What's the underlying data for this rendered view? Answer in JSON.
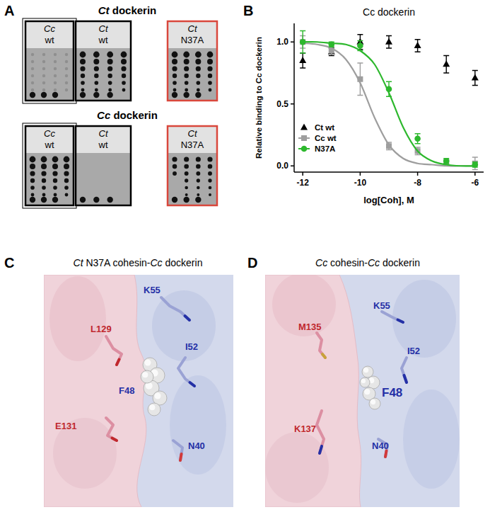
{
  "panels": {
    "A": {
      "label": "A",
      "groups": [
        {
          "title": [
            {
              "text": "Ct",
              "italic": true
            },
            {
              "text": " dockerin",
              "italic": false
            }
          ],
          "blots": [
            {
              "label": [
                "Cc",
                "wt"
              ],
              "color": "#000000"
            },
            {
              "label": [
                "Ct",
                "wt"
              ],
              "color": "#000000"
            },
            {
              "label": [
                "Ct",
                "N37A"
              ],
              "color": "#d9473c"
            }
          ]
        },
        {
          "title": [
            {
              "text": "Cc",
              "italic": true
            },
            {
              "text": " dockerin",
              "italic": false
            }
          ],
          "blots": [
            {
              "label": [
                "Cc",
                "wt"
              ],
              "color": "#000000"
            },
            {
              "label": [
                "Ct",
                "wt"
              ],
              "color": "#000000"
            },
            {
              "label": [
                "Ct",
                "N37A"
              ],
              "color": "#d9473c"
            }
          ]
        }
      ]
    },
    "B": {
      "label": "B"
    },
    "C": {
      "label": "C",
      "title": [
        {
          "text": "Ct",
          "italic": true
        },
        {
          "text": " N37A cohesin-",
          "italic": false
        },
        {
          "text": "Cc",
          "italic": true
        },
        {
          "text": " dockerin",
          "italic": false
        }
      ],
      "residues": [
        {
          "text": "K55",
          "color": "#2430a6"
        },
        {
          "text": "L129",
          "color": "#c0282d"
        },
        {
          "text": "I52",
          "color": "#2430a6"
        },
        {
          "text": "F48",
          "color": "#2430a6"
        },
        {
          "text": "E131",
          "color": "#c0282d"
        },
        {
          "text": "N40",
          "color": "#2430a6"
        }
      ]
    },
    "D": {
      "label": "D",
      "title": [
        {
          "text": "Cc",
          "italic": true
        },
        {
          "text": " cohesin-",
          "italic": false
        },
        {
          "text": "Cc",
          "italic": true
        },
        {
          "text": " dockerin",
          "italic": false
        }
      ],
      "residues": [
        {
          "text": "K55",
          "color": "#2430a6"
        },
        {
          "text": "M135",
          "color": "#c0282d"
        },
        {
          "text": "I52",
          "color": "#2430a6"
        },
        {
          "text": "F48",
          "color": "#2430a6"
        },
        {
          "text": "N40",
          "color": "#2430a6"
        },
        {
          "text": "K137",
          "color": "#c0282d"
        }
      ]
    }
  },
  "chart_data": {
    "type": "line",
    "title": "Cc dockerin",
    "x_label": "log[Coh], M",
    "y_label": "Relative binding to Cc dockerin",
    "x": [
      -12,
      -11,
      -10,
      -9,
      -8,
      -7,
      -6
    ],
    "fit_x": [
      -12,
      -11.5,
      -11,
      -10.5,
      -10,
      -9.5,
      -9,
      -8.5,
      -8,
      -7.5,
      -7,
      -6.5,
      -6
    ],
    "series": [
      {
        "name": "Ct wt",
        "color": "#000000",
        "marker": "triangle",
        "line_style": "none",
        "values": [
          0.85,
          0.92,
          1.0,
          1.0,
          0.97,
          0.82,
          0.71
        ],
        "errors": [
          0.06,
          0.03,
          0.06,
          0.05,
          0.05,
          0.07,
          0.06
        ]
      },
      {
        "name": "Cc wt",
        "color": "#9e9e9e",
        "marker": "square",
        "line_style": "solid",
        "values": [
          1.0,
          0.93,
          0.7,
          0.16,
          0.12,
          0.03,
          0.02
        ],
        "errors": [
          0.05,
          0.03,
          0.13,
          0.03,
          0.03,
          0.02,
          0.05
        ],
        "fit": [
          0.99,
          0.98,
          0.95,
          0.86,
          0.67,
          0.39,
          0.17,
          0.06,
          0.02,
          0.01,
          0.0,
          0.0,
          0.0
        ]
      },
      {
        "name": "N37A",
        "color": "#2db82d",
        "marker": "circle",
        "line_style": "solid",
        "values": [
          1.0,
          0.98,
          0.97,
          0.62,
          0.22,
          0.04,
          0.01
        ],
        "errors": [
          0.09,
          0.02,
          0.04,
          0.06,
          0.04,
          0.02,
          0.02
        ],
        "fit": [
          1.0,
          1.0,
          0.99,
          0.98,
          0.93,
          0.82,
          0.59,
          0.31,
          0.12,
          0.04,
          0.01,
          0.0,
          0.0
        ]
      }
    ],
    "xlim": [
      -12.3,
      -5.7
    ],
    "xticks": [
      -12,
      -10,
      -8,
      -6
    ],
    "ylim": [
      -0.05,
      1.15
    ],
    "yticks": [
      {
        "value": 0,
        "label": "0.0"
      },
      {
        "value": 0.5,
        "label": "0.5"
      },
      {
        "value": 1,
        "label": "1.0"
      }
    ],
    "grid": false,
    "legend": "lower left"
  }
}
